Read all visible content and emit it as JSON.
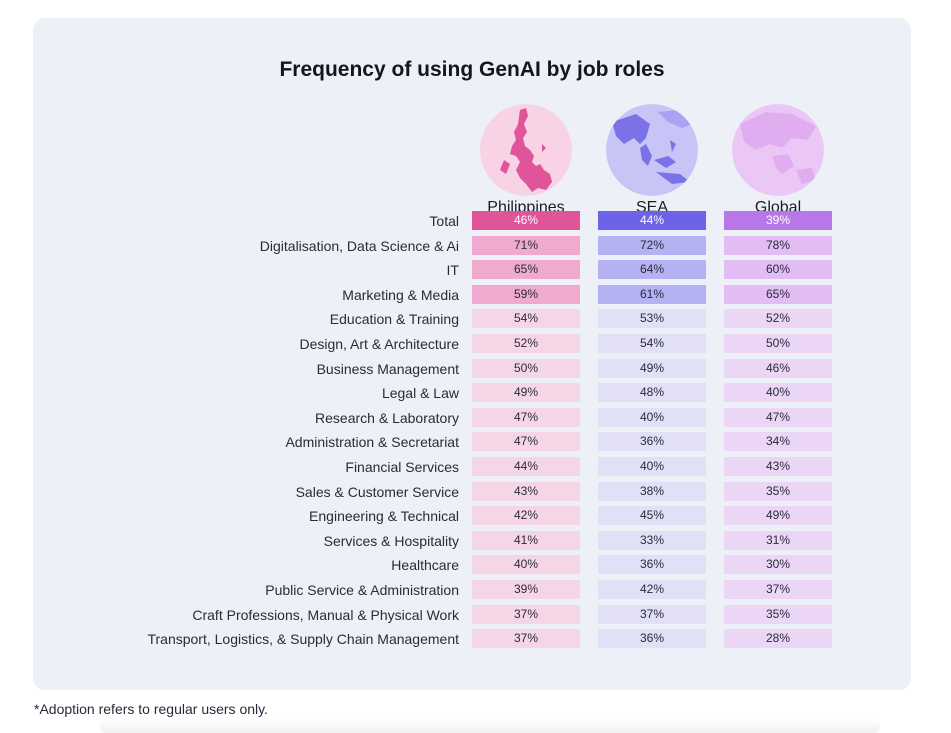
{
  "chart_data": {
    "type": "table",
    "title": "Frequency of using GenAI by job roles",
    "columns": [
      "Philippines",
      "SEA",
      "Global"
    ],
    "rows": [
      {
        "label": "Total",
        "values": [
          "46%",
          "44%",
          "39%"
        ]
      },
      {
        "label": "Digitalisation, Data Science & Ai",
        "values": [
          "71%",
          "72%",
          "78%"
        ]
      },
      {
        "label": "IT",
        "values": [
          "65%",
          "64%",
          "60%"
        ]
      },
      {
        "label": "Marketing & Media",
        "values": [
          "59%",
          "61%",
          "65%"
        ]
      },
      {
        "label": "Education & Training",
        "values": [
          "54%",
          "53%",
          "52%"
        ]
      },
      {
        "label": "Design, Art & Architecture",
        "values": [
          "52%",
          "54%",
          "50%"
        ]
      },
      {
        "label": "Business Management",
        "values": [
          "50%",
          "49%",
          "46%"
        ]
      },
      {
        "label": "Legal & Law",
        "values": [
          "49%",
          "48%",
          "40%"
        ]
      },
      {
        "label": "Research & Laboratory",
        "values": [
          "47%",
          "40%",
          "47%"
        ]
      },
      {
        "label": "Administration & Secretariat",
        "values": [
          "47%",
          "36%",
          "34%"
        ]
      },
      {
        "label": "Financial Services",
        "values": [
          "44%",
          "40%",
          "43%"
        ]
      },
      {
        "label": "Sales & Customer Service",
        "values": [
          "43%",
          "38%",
          "35%"
        ]
      },
      {
        "label": "Engineering & Technical",
        "values": [
          "42%",
          "45%",
          "49%"
        ]
      },
      {
        "label": "Services & Hospitality",
        "values": [
          "41%",
          "33%",
          "31%"
        ]
      },
      {
        "label": "Healthcare",
        "values": [
          "40%",
          "36%",
          "30%"
        ]
      },
      {
        "label": "Public Service & Administration",
        "values": [
          "39%",
          "42%",
          "37%"
        ]
      },
      {
        "label": "Craft Professions, Manual & Physical Work",
        "values": [
          "37%",
          "37%",
          "35%"
        ]
      },
      {
        "label": "Transport, Logistics, & Supply Chain Management",
        "values": [
          "37%",
          "36%",
          "28%"
        ]
      }
    ],
    "column_colors": {
      "Philippines": {
        "total": "#e0559a",
        "high": "#f0a9cf",
        "normal": "#f5d6e7"
      },
      "SEA": {
        "total": "#6c63e8",
        "high": "#b5b2f4",
        "normal": "#e1e0f7"
      },
      "Global": {
        "total": "#b877e8",
        "high": "#e2bdf4",
        "normal": "#ecd6f6"
      }
    },
    "globe_icons": [
      "philippines-map-icon",
      "sea-map-icon",
      "global-map-icon"
    ]
  },
  "footnote": "*Adoption refers to regular users only."
}
